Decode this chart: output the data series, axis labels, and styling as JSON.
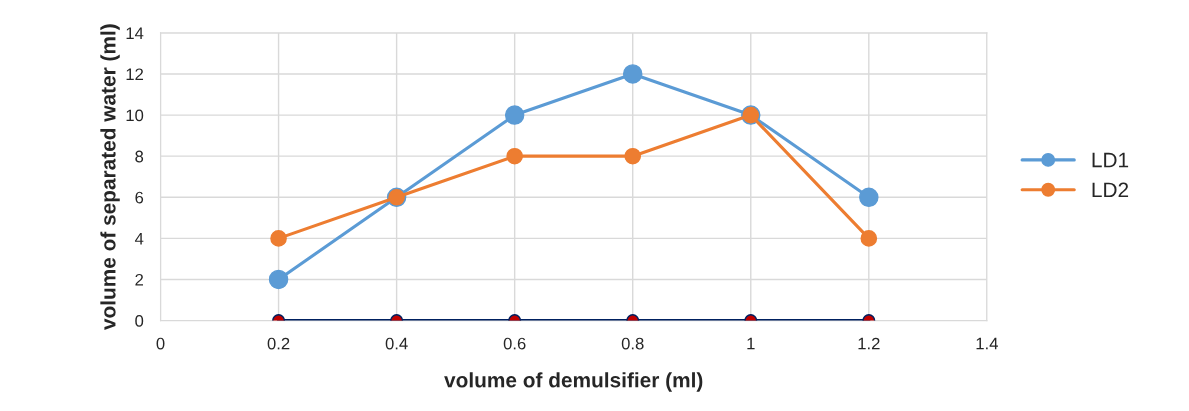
{
  "chart_data": {
    "type": "line",
    "xlabel": "volume of demulsifier (ml)",
    "ylabel": "volume of separated water (ml)",
    "x": [
      0.2,
      0.4,
      0.6,
      0.8,
      1,
      1.2
    ],
    "series": [
      {
        "name": "LD1",
        "color": "#5b9bd5",
        "values": [
          2,
          6,
          10,
          12,
          10,
          6
        ]
      },
      {
        "name": "LD2",
        "color": "#ed7d31",
        "values": [
          4,
          6,
          8,
          8,
          10,
          4
        ]
      },
      {
        "color": "#002060",
        "colors": [
          "#c00000",
          "#c00000",
          "#c00000",
          "#c00000",
          "#c00000",
          "#c00000"
        ],
        "values": [
          0,
          0,
          0,
          0,
          0,
          0
        ]
      }
    ],
    "xlim": [
      0,
      1.4
    ],
    "xticks": [
      0,
      0.2,
      0.4,
      0.6,
      0.8,
      1,
      1.2,
      1.4
    ],
    "ylim": [
      0,
      14
    ],
    "yticks": [
      0,
      2,
      4,
      6,
      8,
      10,
      12,
      14
    ],
    "grid": true,
    "legend": "right",
    "marker": "circle",
    "line_style": "solid"
  }
}
